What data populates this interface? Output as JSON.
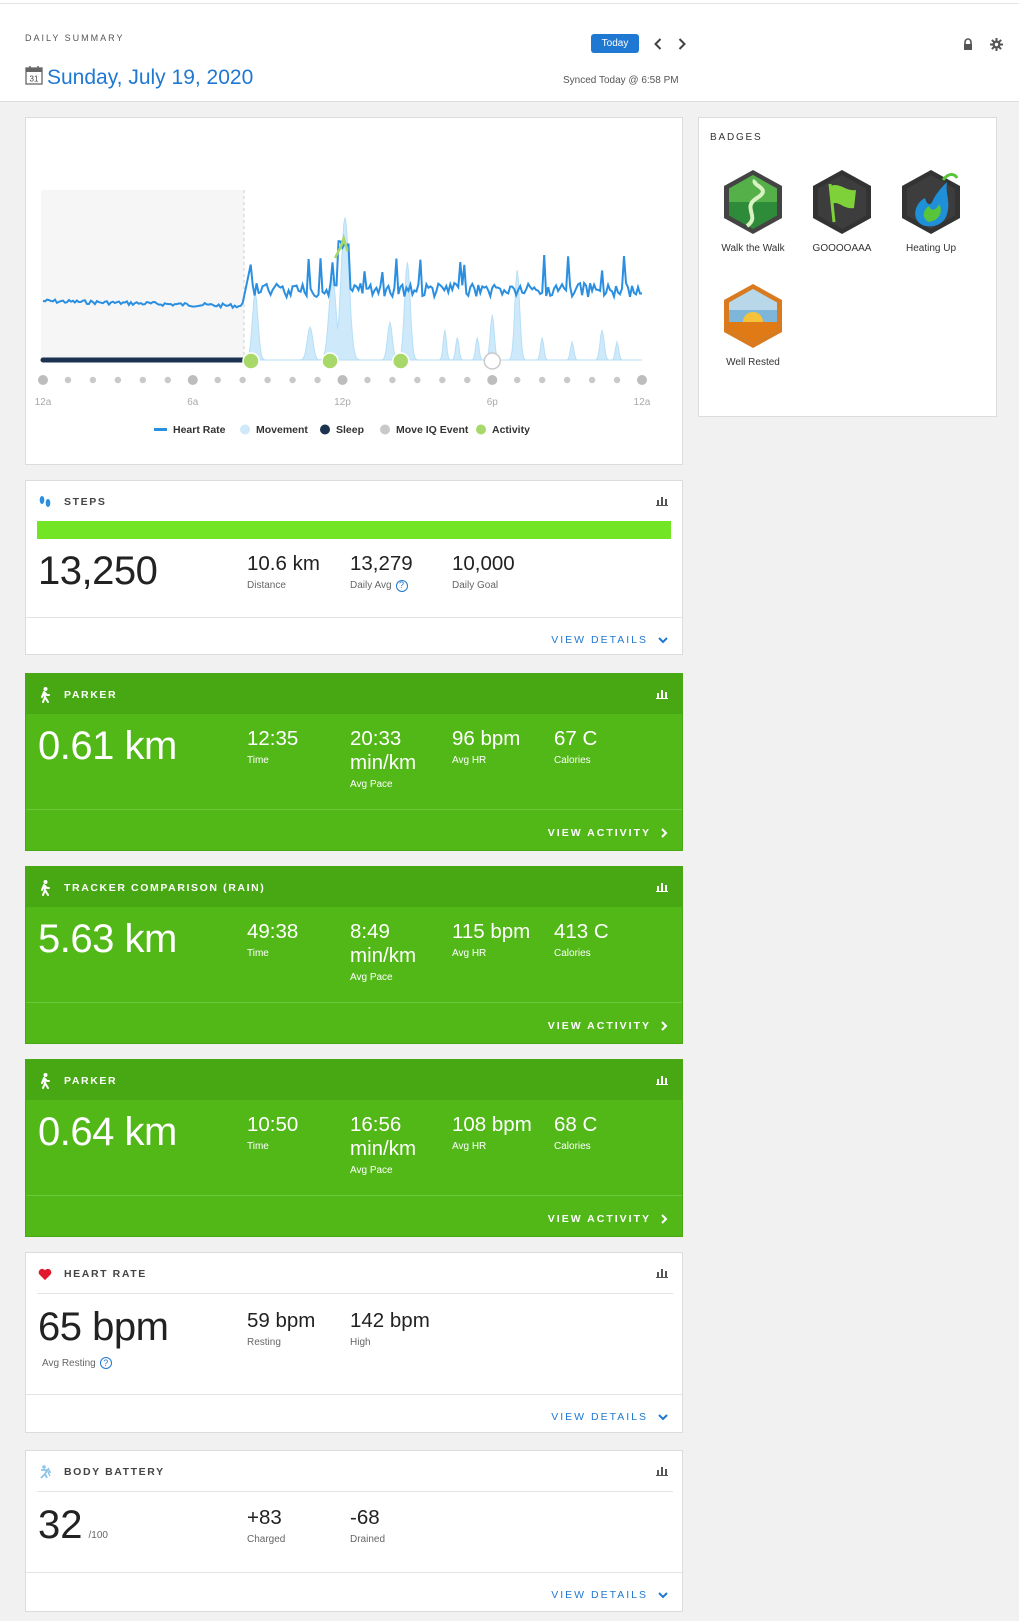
{
  "header": {
    "section_label": "DAILY SUMMARY",
    "date": "Sunday, July 19, 2020",
    "today_label": "Today",
    "synced": "Synced Today @ 6:58 PM"
  },
  "chart": {
    "x_ticks": [
      "12a",
      "6a",
      "12p",
      "6p",
      "12a"
    ],
    "legend": [
      "Heart Rate",
      "Movement",
      "Sleep",
      "Move IQ Event",
      "Activity"
    ],
    "colors": {
      "heart_rate": "#2a8fe0",
      "movement": "#cde9fa",
      "sleep": "#1b3350",
      "move_iq": "#c8c8c8",
      "activity": "#a8d86a"
    }
  },
  "chart_data": {
    "type": "line",
    "x_range": [
      "12a",
      "12a"
    ],
    "sleep_span": [
      "12a",
      "8:15a"
    ],
    "activity_events": [
      "8:20a",
      "11:30a",
      "2:20p"
    ],
    "move_iq_events": [
      "6:00p"
    ]
  },
  "badges": {
    "title": "BADGES",
    "items": [
      {
        "label": "Walk the Walk",
        "icon": "walk-the-walk-badge-icon"
      },
      {
        "label": "GOOOOAAA",
        "icon": "flag-badge-icon"
      },
      {
        "label": "Heating Up",
        "icon": "heating-up-badge-icon"
      },
      {
        "label": "Well Rested",
        "icon": "sunrise-badge-icon"
      }
    ]
  },
  "steps": {
    "title": "STEPS",
    "total": "13,250",
    "progress": 1.0,
    "stats": [
      {
        "value": "10.6 km",
        "label": "Distance"
      },
      {
        "value": "13,279",
        "label": "Daily Avg"
      },
      {
        "value": "10,000",
        "label": "Daily Goal"
      }
    ],
    "link": "VIEW DETAILS"
  },
  "activities": [
    {
      "title": "PARKER",
      "distance": "0.61 km",
      "stats": [
        {
          "value": "12:35",
          "label": "Time"
        },
        {
          "value": "20:33 min/km",
          "label": "Avg Pace"
        },
        {
          "value": "96 bpm",
          "label": "Avg HR"
        },
        {
          "value": "67 C",
          "label": "Calories"
        }
      ],
      "link": "VIEW ACTIVITY"
    },
    {
      "title": "TRACKER COMPARISON (RAIN)",
      "distance": "5.63 km",
      "stats": [
        {
          "value": "49:38",
          "label": "Time"
        },
        {
          "value": "8:49 min/km",
          "label": "Avg Pace"
        },
        {
          "value": "115 bpm",
          "label": "Avg HR"
        },
        {
          "value": "413 C",
          "label": "Calories"
        }
      ],
      "link": "VIEW ACTIVITY"
    },
    {
      "title": "PARKER",
      "distance": "0.64 km",
      "stats": [
        {
          "value": "10:50",
          "label": "Time"
        },
        {
          "value": "16:56 min/km",
          "label": "Avg Pace"
        },
        {
          "value": "108 bpm",
          "label": "Avg HR"
        },
        {
          "value": "68 C",
          "label": "Calories"
        }
      ],
      "link": "VIEW ACTIVITY"
    }
  ],
  "heart_rate": {
    "title": "HEART RATE",
    "avg": "65 bpm",
    "avg_label": "Avg Resting",
    "stats": [
      {
        "value": "59 bpm",
        "label": "Resting"
      },
      {
        "value": "142 bpm",
        "label": "High"
      }
    ],
    "link": "VIEW DETAILS"
  },
  "body_battery": {
    "title": "BODY BATTERY",
    "value": "32",
    "suffix": "/100",
    "stats": [
      {
        "value": "+83",
        "label": "Charged"
      },
      {
        "value": "-68",
        "label": "Drained"
      }
    ],
    "link": "VIEW DETAILS"
  }
}
